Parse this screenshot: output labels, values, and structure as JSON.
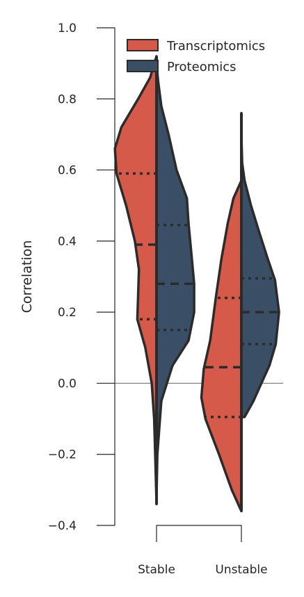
{
  "chart_data": {
    "type": "violin",
    "split": true,
    "title": "",
    "xlabel": "",
    "ylabel": "Correlation",
    "ylim": [
      -0.4,
      1.0
    ],
    "yticks": [
      1.0,
      0.8,
      0.6,
      0.4,
      0.2,
      0.0,
      -0.2,
      -0.4
    ],
    "ytick_labels": [
      "1.0",
      "0.8",
      "0.6",
      "0.4",
      "0.2",
      "0.0",
      "−0.2",
      "−0.4"
    ],
    "reference_line_y": 0.0,
    "categories": [
      "Stable",
      "Unstable"
    ],
    "legend": {
      "position": "top-right"
    },
    "series": [
      {
        "name": "Transcriptomics",
        "color": "#d65a4a",
        "side": "left",
        "groups": [
          {
            "category": "Stable",
            "min": -0.34,
            "max": 0.92,
            "quartiles": [
              0.18,
              0.39,
              0.59
            ],
            "density": [
              [
                -0.34,
                0.0
              ],
              [
                -0.25,
                0.01
              ],
              [
                -0.1,
                0.03
              ],
              [
                0.0,
                0.06
              ],
              [
                0.1,
                0.14
              ],
              [
                0.18,
                0.24
              ],
              [
                0.25,
                0.23
              ],
              [
                0.32,
                0.22
              ],
              [
                0.4,
                0.27
              ],
              [
                0.5,
                0.38
              ],
              [
                0.59,
                0.5
              ],
              [
                0.66,
                0.52
              ],
              [
                0.72,
                0.44
              ],
              [
                0.8,
                0.23
              ],
              [
                0.86,
                0.08
              ],
              [
                0.92,
                0.0
              ]
            ]
          },
          {
            "category": "Unstable",
            "min": -0.36,
            "max": 0.57,
            "quartiles": [
              -0.095,
              0.045,
              0.24
            ],
            "density": [
              [
                -0.36,
                0.0
              ],
              [
                -0.3,
                0.12
              ],
              [
                -0.2,
                0.28
              ],
              [
                -0.1,
                0.45
              ],
              [
                -0.04,
                0.5
              ],
              [
                0.04,
                0.47
              ],
              [
                0.12,
                0.39
              ],
              [
                0.24,
                0.32
              ],
              [
                0.35,
                0.25
              ],
              [
                0.45,
                0.17
              ],
              [
                0.52,
                0.1
              ],
              [
                0.57,
                0.0
              ]
            ]
          }
        ]
      },
      {
        "name": "Proteomics",
        "color": "#3a4f66",
        "side": "right",
        "groups": [
          {
            "category": "Stable",
            "min": -0.32,
            "max": 0.9,
            "quartiles": [
              0.15,
              0.28,
              0.445
            ],
            "density": [
              [
                -0.32,
                0.0
              ],
              [
                -0.2,
                0.01
              ],
              [
                -0.05,
                0.06
              ],
              [
                0.05,
                0.2
              ],
              [
                0.12,
                0.4
              ],
              [
                0.2,
                0.47
              ],
              [
                0.28,
                0.47
              ],
              [
                0.38,
                0.43
              ],
              [
                0.45,
                0.4
              ],
              [
                0.52,
                0.38
              ],
              [
                0.6,
                0.25
              ],
              [
                0.7,
                0.15
              ],
              [
                0.78,
                0.06
              ],
              [
                0.85,
                0.02
              ],
              [
                0.9,
                0.0
              ]
            ]
          },
          {
            "category": "Unstable",
            "min": -0.095,
            "max": 0.76,
            "quartiles": [
              0.11,
              0.2,
              0.295
            ],
            "density": [
              [
                -0.095,
                0.04
              ],
              [
                -0.05,
                0.15
              ],
              [
                0.0,
                0.25
              ],
              [
                0.05,
                0.35
              ],
              [
                0.11,
                0.43
              ],
              [
                0.2,
                0.47
              ],
              [
                0.29,
                0.42
              ],
              [
                0.35,
                0.33
              ],
              [
                0.42,
                0.23
              ],
              [
                0.5,
                0.12
              ],
              [
                0.57,
                0.04
              ],
              [
                0.62,
                0.01
              ],
              [
                0.7,
                0.0
              ],
              [
                0.76,
                0.0
              ]
            ]
          }
        ]
      }
    ]
  }
}
